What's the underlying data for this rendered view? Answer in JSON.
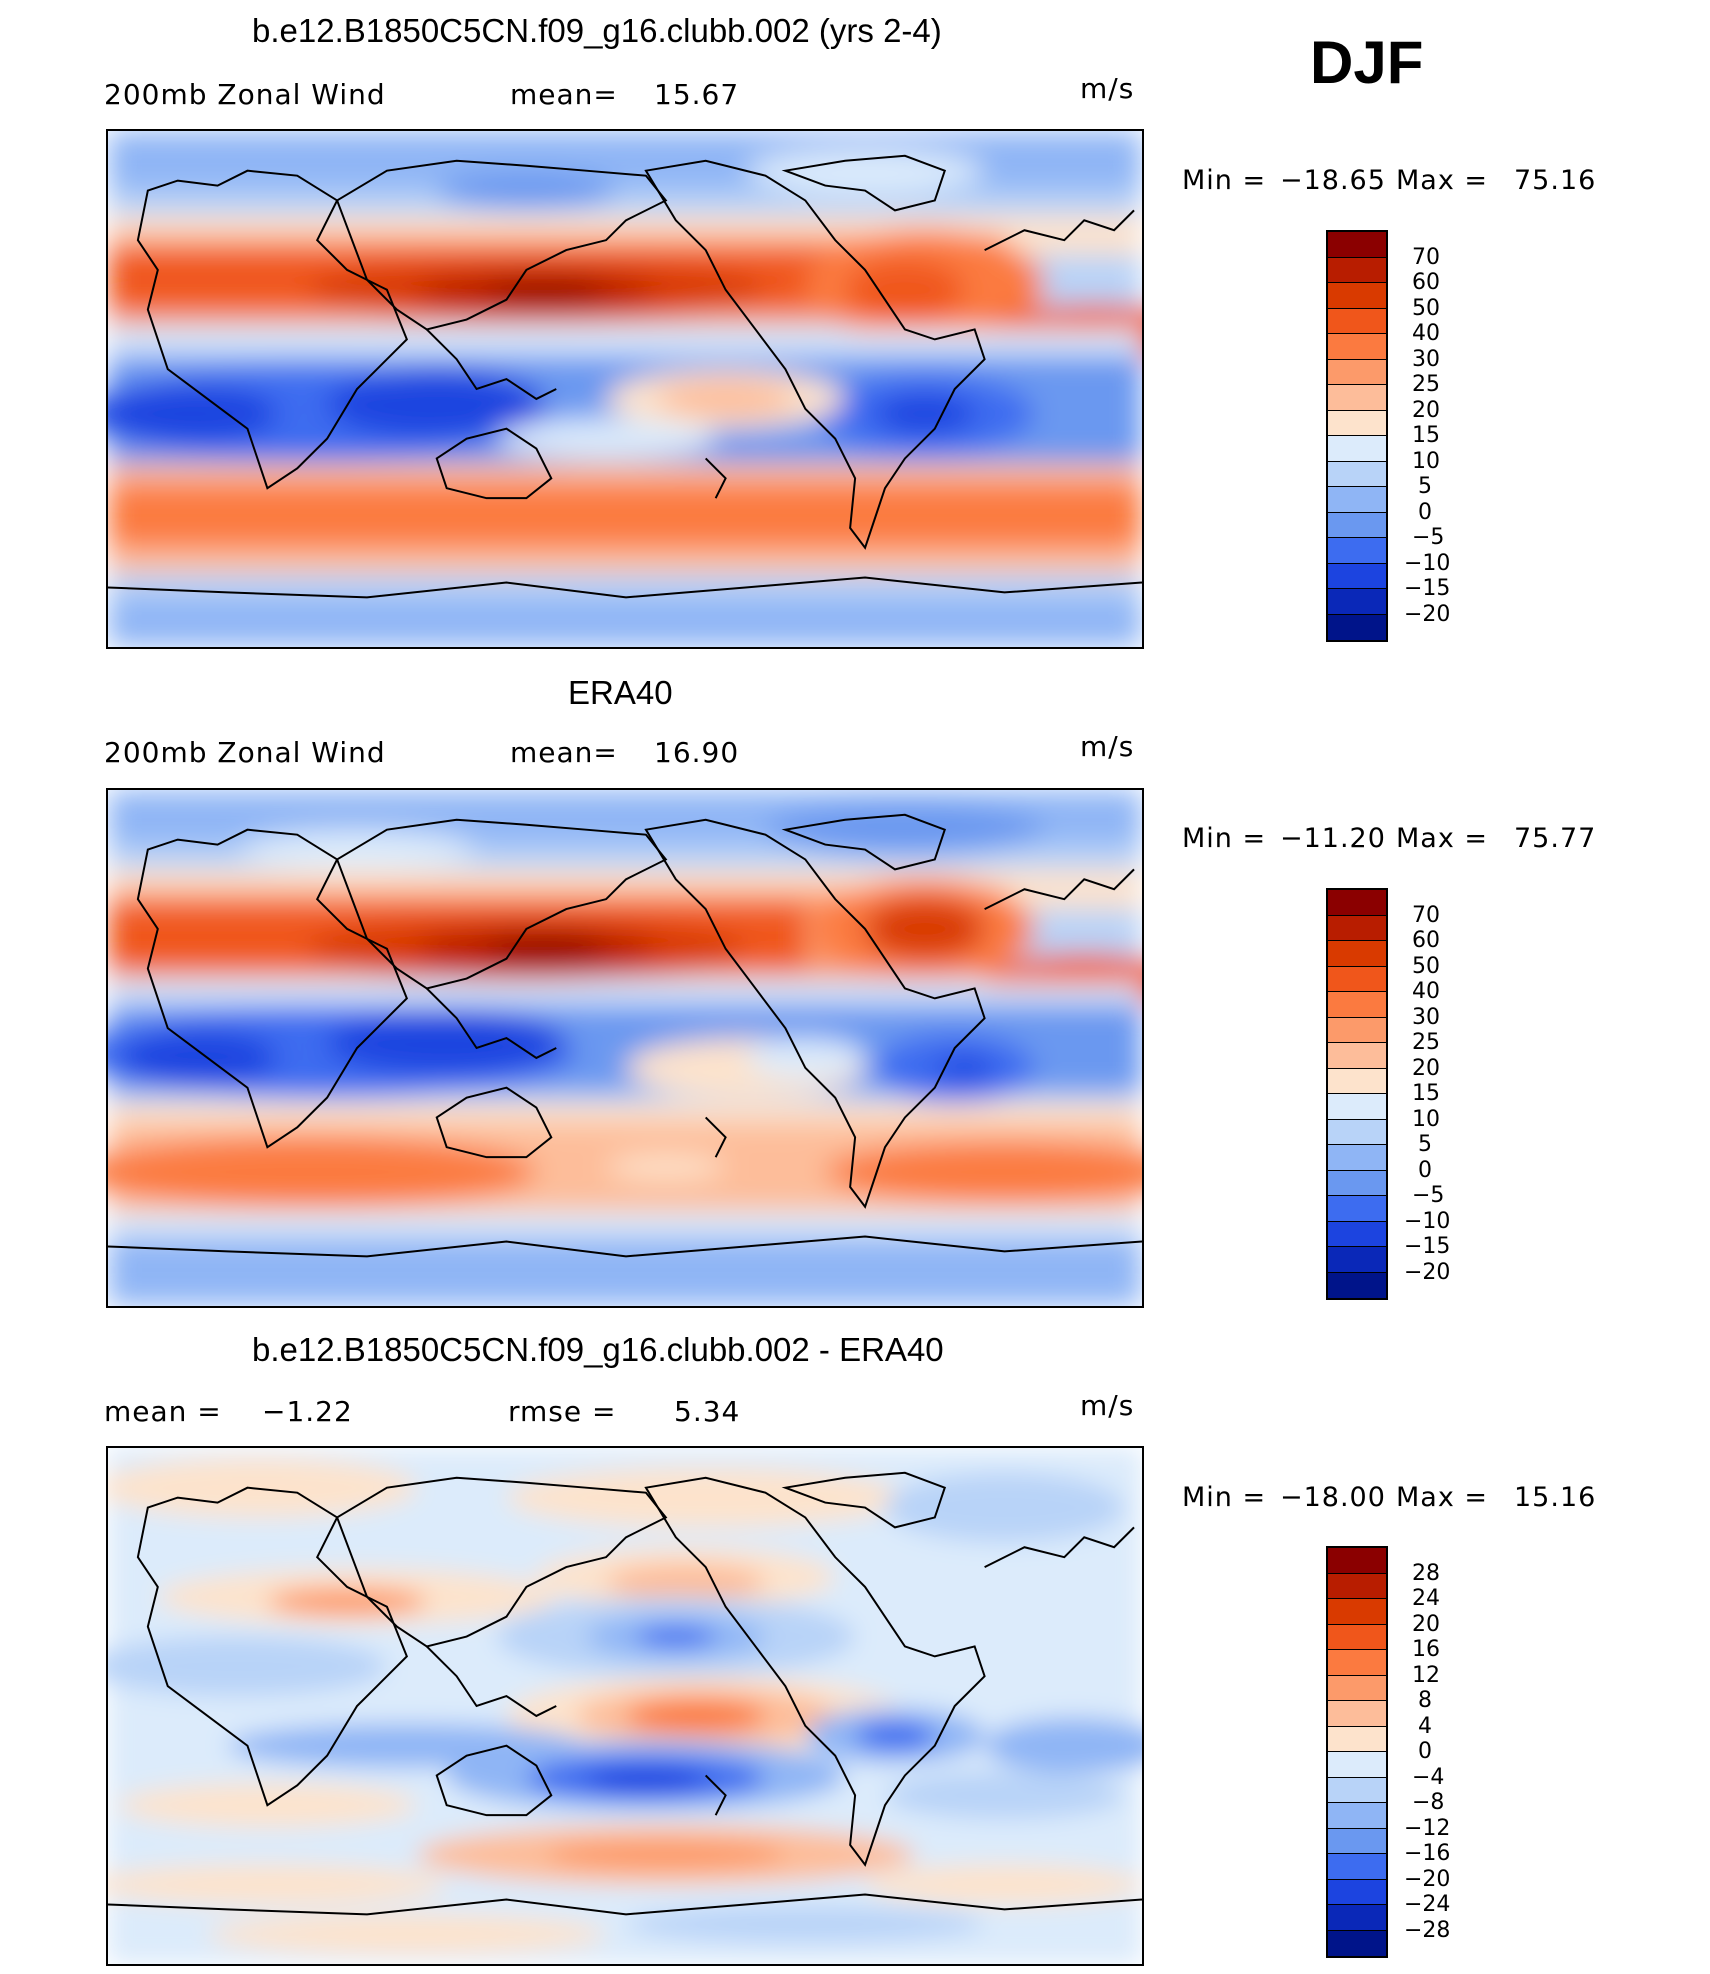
{
  "season": "DJF",
  "panels": [
    {
      "title": "b.e12.B1850C5CN.f09_g16.clubb.002 (yrs 2-4)",
      "left_label": "200mb Zonal Wind",
      "stat1_label": "mean=",
      "stat1_value": "15.67",
      "stat2_label": "",
      "stat2_value": "",
      "units": "m/s",
      "min_label": "Min  =",
      "min_value": "−18.65",
      "max_label": "Max  =",
      "max_value": "75.16",
      "colorbar_labels": [
        "70",
        "60",
        "50",
        "40",
        "30",
        "25",
        "20",
        "15",
        "10",
        "5",
        "0",
        "−5",
        "−10",
        "−15",
        "−20"
      ],
      "colorbar_colors": [
        "#8b0000",
        "#b81d00",
        "#d93a00",
        "#f0561b",
        "#fb7a40",
        "#fc9a6a",
        "#fdbd9a",
        "#fde3cc",
        "#dcebfb",
        "#b8d3f8",
        "#8fb5f5",
        "#6a98f0",
        "#3d6cf0",
        "#1c44e0",
        "#0a28b8",
        "#00148a"
      ],
      "map_kind": "wind"
    },
    {
      "title": "ERA40",
      "left_label": "200mb Zonal Wind",
      "stat1_label": "mean=",
      "stat1_value": "16.90",
      "stat2_label": "",
      "stat2_value": "",
      "units": "m/s",
      "min_label": "Min  =",
      "min_value": "−11.20",
      "max_label": "Max  =",
      "max_value": "75.77",
      "colorbar_labels": [
        "70",
        "60",
        "50",
        "40",
        "30",
        "25",
        "20",
        "15",
        "10",
        "5",
        "0",
        "−5",
        "−10",
        "−15",
        "−20"
      ],
      "colorbar_colors": [
        "#8b0000",
        "#b81d00",
        "#d93a00",
        "#f0561b",
        "#fb7a40",
        "#fc9a6a",
        "#fdbd9a",
        "#fde3cc",
        "#dcebfb",
        "#b8d3f8",
        "#8fb5f5",
        "#6a98f0",
        "#3d6cf0",
        "#1c44e0",
        "#0a28b8",
        "#00148a"
      ],
      "map_kind": "wind"
    },
    {
      "title": "b.e12.B1850C5CN.f09_g16.clubb.002 - ERA40",
      "left_label": "mean =",
      "stat1_label": "",
      "stat1_value": "−1.22",
      "stat2_label": "rmse =",
      "stat2_value": "5.34",
      "units": "m/s",
      "min_label": "Min  =",
      "min_value": "−18.00",
      "max_label": "Max  =",
      "max_value": "15.16",
      "colorbar_labels": [
        "28",
        "24",
        "20",
        "16",
        "12",
        "8",
        "4",
        "0",
        "−4",
        "−8",
        "−12",
        "−16",
        "−20",
        "−24",
        "−28"
      ],
      "colorbar_colors": [
        "#8b0000",
        "#b81d00",
        "#d93a00",
        "#f0561b",
        "#fb7a40",
        "#fc9a6a",
        "#fdbd9a",
        "#fde3cc",
        "#dcebfb",
        "#b8d3f8",
        "#8fb5f5",
        "#6a98f0",
        "#3d6cf0",
        "#1c44e0",
        "#0a28b8",
        "#00148a"
      ],
      "map_kind": "diff"
    }
  ]
}
